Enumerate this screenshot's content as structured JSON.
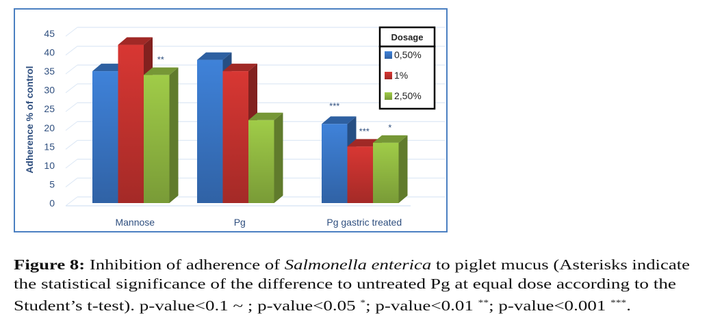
{
  "chart_data": {
    "type": "bar",
    "title": "",
    "xlabel": "",
    "ylabel": "Adherence % of control",
    "ylim": [
      0,
      45
    ],
    "yticks": [
      0,
      5,
      10,
      15,
      20,
      25,
      30,
      35,
      40,
      45
    ],
    "grid": true,
    "categories": [
      "Mannose",
      "Pg",
      "Pg gastric treated"
    ],
    "legend": {
      "title": "Dosage",
      "placement": "top-right"
    },
    "series": [
      {
        "name": "0,50%",
        "color": "#3a78c9",
        "values": [
          35,
          38,
          21
        ],
        "annotations": [
          "",
          "",
          "***"
        ]
      },
      {
        "name": "1%",
        "color": "#c8332f",
        "values": [
          42,
          35,
          15
        ],
        "annotations": [
          "",
          "",
          "***"
        ]
      },
      {
        "name": "2,50%",
        "color": "#94bd43",
        "values": [
          34,
          22,
          16
        ],
        "annotations": [
          "**",
          "",
          "*"
        ]
      }
    ]
  },
  "caption": {
    "label": "Figure 8:",
    "text_1": " Inhibition of adherence of ",
    "italic": "Salmonella enterica",
    "text_2": " to piglet mucus (Asterisks indicate",
    "line_2": "the statistical significance of the difference to untreated Pg at equal dose according to the",
    "line_3a": "Student’s t-test). p-value<0.1 ~ ; p-value<0.05 ",
    "sup_1": "*",
    "line_3b": "; p-value<0.01 ",
    "sup_2": "**",
    "line_3c": "; p-value<0.001 ",
    "sup_3": "***",
    "line_3d": "."
  }
}
